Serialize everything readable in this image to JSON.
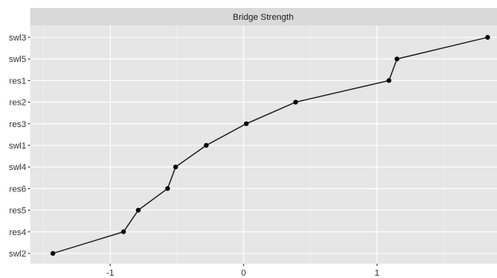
{
  "chart_data": {
    "type": "line",
    "facet_title": "Bridge Strength",
    "xlabel": "",
    "ylabel": "",
    "xlim": [
      -1.6,
      1.9
    ],
    "x_ticks": [
      -1,
      0,
      1
    ],
    "x_tick_labels": [
      "-1",
      "0",
      "1"
    ],
    "categories": [
      "swl2",
      "res4",
      "res5",
      "res6",
      "swl4",
      "swl1",
      "res3",
      "res2",
      "res1",
      "swl5",
      "swl3"
    ],
    "values": [
      -1.43,
      -0.9,
      -0.79,
      -0.57,
      -0.51,
      -0.28,
      0.02,
      0.39,
      1.09,
      1.15,
      1.83
    ],
    "grid": true,
    "legend": "none",
    "colors": {
      "panel_background": "#e6e6e6",
      "grid_major": "#ffffff",
      "strip_background": "#d9d9d9",
      "line": "#1a1a1a",
      "point": "#000000"
    }
  }
}
